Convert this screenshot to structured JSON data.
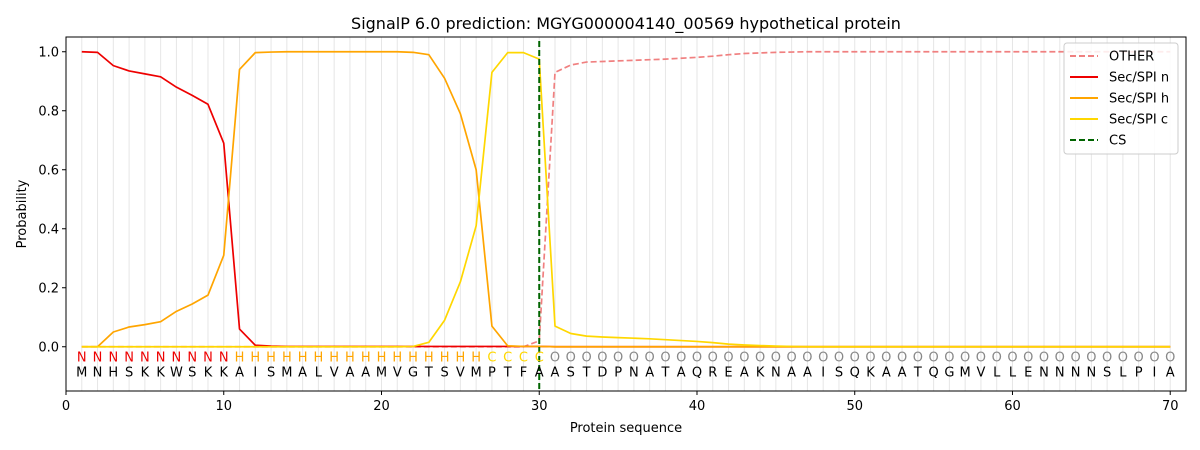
{
  "chart_data": {
    "type": "line",
    "title": "SignalP 6.0 prediction: MGYG000004140_00569 hypothetical protein",
    "xlabel": "Protein sequence",
    "ylabel": "Probability",
    "xlim": [
      0,
      71
    ],
    "ylim": [
      -0.15,
      1.05
    ],
    "xticks": [
      "0",
      "10",
      "20",
      "30",
      "40",
      "50",
      "60",
      "70"
    ],
    "yticks": [
      "0.0",
      "0.2",
      "0.4",
      "0.6",
      "0.8",
      "1.0"
    ],
    "grid": "vertical lines at each residue",
    "legend_position": "top-right",
    "sequence": [
      "M",
      "N",
      "H",
      "S",
      "K",
      "K",
      "W",
      "S",
      "K",
      "K",
      "A",
      "I",
      "S",
      "M",
      "A",
      "L",
      "V",
      "A",
      "A",
      "M",
      "V",
      "G",
      "T",
      "S",
      "V",
      "M",
      "P",
      "T",
      "F",
      "A",
      "A",
      "S",
      "T",
      "D",
      "P",
      "N",
      "A",
      "T",
      "A",
      "Q",
      "R",
      "E",
      "A",
      "K",
      "N",
      "A",
      "A",
      "I",
      "S",
      "Q",
      "K",
      "A",
      "A",
      "T",
      "Q",
      "G",
      "M",
      "V",
      "L",
      "L",
      "E",
      "N",
      "N",
      "N",
      "N",
      "S",
      "L",
      "P",
      "I",
      "A"
    ],
    "labels": [
      "N",
      "N",
      "N",
      "N",
      "N",
      "N",
      "N",
      "N",
      "N",
      "N",
      "H",
      "H",
      "H",
      "H",
      "H",
      "H",
      "H",
      "H",
      "H",
      "H",
      "H",
      "H",
      "H",
      "H",
      "H",
      "H",
      "C",
      "C",
      "C",
      "C",
      "O",
      "O",
      "O",
      "O",
      "O",
      "O",
      "O",
      "O",
      "O",
      "O",
      "O",
      "O",
      "O",
      "O",
      "O",
      "O",
      "O",
      "O",
      "O",
      "O",
      "O",
      "O",
      "O",
      "O",
      "O",
      "O",
      "O",
      "O",
      "O",
      "O",
      "O",
      "O",
      "O",
      "O",
      "O",
      "O",
      "O",
      "O",
      "O",
      "O"
    ],
    "label_colors": {
      "N": "#ee0000",
      "H": "#ffa500",
      "C": "#ffd700",
      "O": "#888888"
    },
    "series": [
      {
        "name": "OTHER",
        "color": "#f08080",
        "dash": "dashed",
        "values": [
          0,
          0,
          0,
          0,
          0,
          0,
          0,
          0,
          0,
          0,
          0,
          0,
          0,
          0,
          0,
          0,
          0,
          0,
          0,
          0,
          0,
          0,
          0,
          0,
          0,
          0,
          0,
          0,
          0,
          0.02,
          0.93,
          0.955,
          0.965,
          0.967,
          0.969,
          0.971,
          0.973,
          0.975,
          0.978,
          0.981,
          0.985,
          0.99,
          0.994,
          0.996,
          0.998,
          0.999,
          1,
          1,
          1,
          1,
          1,
          1,
          1,
          1,
          1,
          1,
          1,
          1,
          1,
          1,
          1,
          1,
          1,
          1,
          1,
          1,
          1,
          1,
          1,
          1
        ]
      },
      {
        "name": "Sec/SPI n",
        "color": "#ee0000",
        "dash": "solid",
        "values": [
          1.0,
          0.998,
          0.953,
          0.935,
          0.925,
          0.915,
          0.88,
          0.852,
          0.822,
          0.69,
          0.06,
          0.005,
          0.002,
          0.001,
          0.001,
          0.001,
          0.001,
          0.001,
          0.001,
          0.001,
          0.001,
          0.001,
          0.001,
          0.001,
          0.001,
          0.001,
          0.001,
          0.001,
          0.001,
          0.001,
          0,
          0,
          0,
          0,
          0,
          0,
          0,
          0,
          0,
          0,
          0,
          0,
          0,
          0,
          0,
          0,
          0,
          0,
          0,
          0,
          0,
          0,
          0,
          0,
          0,
          0,
          0,
          0,
          0,
          0,
          0,
          0,
          0,
          0,
          0,
          0,
          0,
          0,
          0,
          0
        ]
      },
      {
        "name": "Sec/SPI h",
        "color": "#ffa500",
        "dash": "solid",
        "values": [
          0,
          0,
          0.05,
          0.067,
          0.075,
          0.085,
          0.12,
          0.145,
          0.175,
          0.31,
          0.94,
          0.997,
          0.999,
          1.0,
          1.0,
          1.0,
          1.0,
          1.0,
          1.0,
          1.0,
          1.0,
          0.998,
          0.99,
          0.91,
          0.79,
          0.6,
          0.07,
          0.003,
          0.001,
          0.001,
          0,
          0,
          0,
          0,
          0,
          0,
          0,
          0,
          0,
          0,
          0,
          0,
          0,
          0,
          0,
          0,
          0,
          0,
          0,
          0,
          0,
          0,
          0,
          0,
          0,
          0,
          0,
          0,
          0,
          0,
          0,
          0,
          0,
          0,
          0,
          0,
          0,
          0,
          0,
          0
        ]
      },
      {
        "name": "Sec/SPI c",
        "color": "#ffd700",
        "dash": "solid",
        "values": [
          0,
          0,
          0,
          0,
          0,
          0,
          0,
          0,
          0,
          0,
          0,
          0,
          0,
          0,
          0,
          0,
          0,
          0,
          0,
          0,
          0,
          0.001,
          0.015,
          0.09,
          0.22,
          0.41,
          0.93,
          0.997,
          0.997,
          0.975,
          0.07,
          0.045,
          0.036,
          0.033,
          0.031,
          0.029,
          0.027,
          0.024,
          0.021,
          0.018,
          0.014,
          0.009,
          0.006,
          0.004,
          0.002,
          0.001,
          0,
          0,
          0,
          0,
          0,
          0,
          0,
          0,
          0,
          0,
          0,
          0,
          0,
          0,
          0,
          0,
          0,
          0,
          0,
          0,
          0,
          0,
          0,
          0
        ]
      },
      {
        "name": "CS",
        "color": "#006400",
        "dash": "dashed",
        "type": "vline",
        "x": 30
      }
    ]
  }
}
